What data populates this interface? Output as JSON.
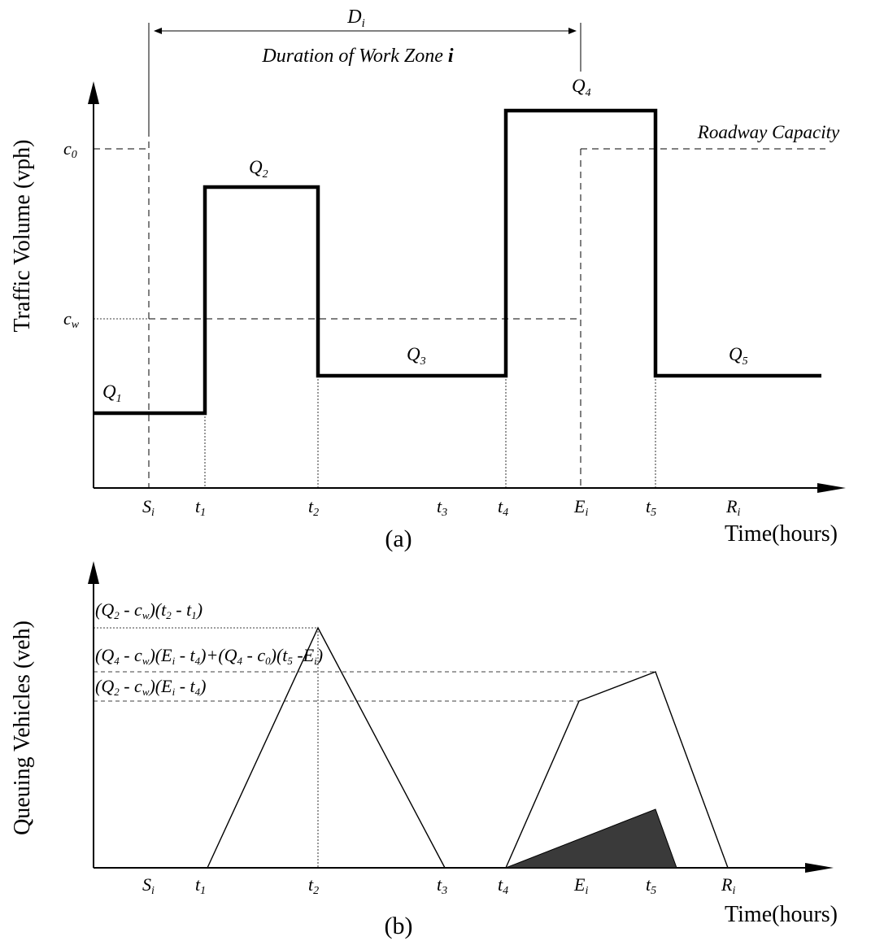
{
  "panel_a": {
    "duration_symbol": "D",
    "duration_symbol_sub": "i",
    "duration_caption": "Duration of Work Zone",
    "duration_caption_i": "i",
    "y_axis_label": "Traffic Volume (vph)",
    "x_axis_label": "Time(hours)",
    "panel_label": "(a)",
    "capacity_label": "Roadway Capacity",
    "c0": {
      "base": "c",
      "sub": "0"
    },
    "cw": {
      "base": "c",
      "sub": "w"
    },
    "q_labels": [
      {
        "base": "Q",
        "sub": "1"
      },
      {
        "base": "Q",
        "sub": "2"
      },
      {
        "base": "Q",
        "sub": "3"
      },
      {
        "base": "Q",
        "sub": "4"
      },
      {
        "base": "Q",
        "sub": "5"
      }
    ],
    "x_ticks": [
      {
        "base": "S",
        "sub": "i"
      },
      {
        "base": "t",
        "sub": "1"
      },
      {
        "base": "t",
        "sub": "2"
      },
      {
        "base": "t",
        "sub": "3"
      },
      {
        "base": "t",
        "sub": "4"
      },
      {
        "base": "E",
        "sub": "i"
      },
      {
        "base": "t",
        "sub": "5"
      },
      {
        "base": "R",
        "sub": "i"
      }
    ]
  },
  "panel_b": {
    "y_axis_label": "Queuing Vehicles (veh)",
    "x_axis_label": "Time(hours)",
    "panel_label": "(b)",
    "level_labels": [
      "(Q4 - cw)(Ei - t4)+(Q4 - c0)(t5 -Ei)",
      "(Q2 - cw)(Ei - t4)",
      "(Q2 - cw)(t2 - t1)"
    ],
    "x_ticks": [
      {
        "base": "S",
        "sub": "i"
      },
      {
        "base": "t",
        "sub": "1"
      },
      {
        "base": "t",
        "sub": "2"
      },
      {
        "base": "t",
        "sub": "3"
      },
      {
        "base": "t",
        "sub": "4"
      },
      {
        "base": "E",
        "sub": "i"
      },
      {
        "base": "t",
        "sub": "5"
      },
      {
        "base": "R",
        "sub": "i"
      }
    ]
  },
  "colors": {
    "ink": "#000000",
    "fill": "#3a3a3a",
    "background": "#ffffff"
  }
}
